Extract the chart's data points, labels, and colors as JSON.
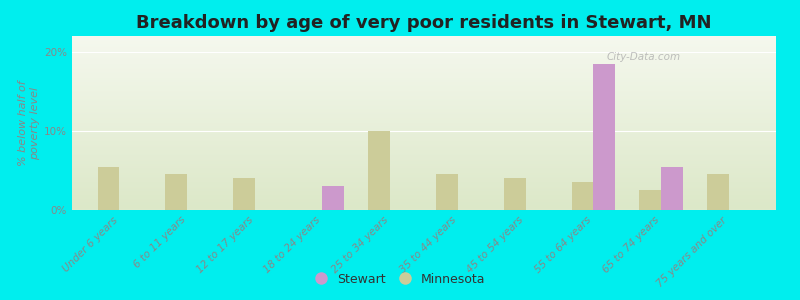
{
  "title": "Breakdown by age of very poor residents in Stewart, MN",
  "ylabel": "% below half of\npoverty level",
  "categories": [
    "Under 6 years",
    "6 to 11 years",
    "12 to 17 years",
    "18 to 24 years",
    "25 to 34 years",
    "35 to 44 years",
    "45 to 54 years",
    "55 to 64 years",
    "65 to 74 years",
    "75 years and over"
  ],
  "stewart_values": [
    0,
    0,
    0,
    3.0,
    0,
    0,
    0,
    18.5,
    5.5,
    0
  ],
  "minnesota_values": [
    5.5,
    4.5,
    4.0,
    0,
    10.0,
    4.5,
    4.0,
    3.5,
    2.5,
    4.5
  ],
  "stewart_color": "#cc99cc",
  "minnesota_color": "#cccc99",
  "background_color": "#00eeee",
  "plot_bg_color_top": "#dce8c8",
  "plot_bg_color_bottom": "#f5f8ee",
  "ylim": [
    0,
    22
  ],
  "yticks": [
    0,
    10,
    20
  ],
  "ytick_labels": [
    "0%",
    "10%",
    "20%"
  ],
  "bar_width": 0.32,
  "title_fontsize": 13,
  "axis_label_fontsize": 8,
  "tick_fontsize": 7.5,
  "legend_fontsize": 9,
  "watermark_text": "City-Data.com"
}
